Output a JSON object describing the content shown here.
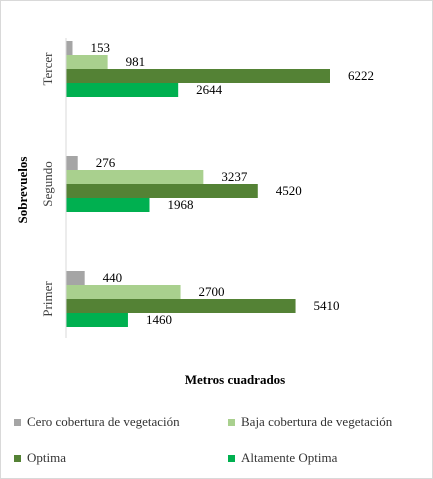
{
  "chart_data": {
    "type": "bar",
    "orientation": "horizontal",
    "categories": [
      "Tercer",
      "Segundo",
      "Primer"
    ],
    "series": [
      {
        "name": "Cero cobertura de vegetación",
        "color": "#a5a5a5",
        "values": [
          153,
          276,
          440
        ]
      },
      {
        "name": "Baja cobertura de vegetación",
        "color": "#a9d08e",
        "values": [
          981,
          3237,
          2700
        ]
      },
      {
        "name": "Optima",
        "color": "#548235",
        "values": [
          6222,
          4520,
          5410
        ]
      },
      {
        "name": "Altamente Optima",
        "color": "#00b050",
        "values": [
          2644,
          1968,
          1460
        ]
      }
    ],
    "xlabel": "Metros cuadrados",
    "ylabel": "Sobrevuelos",
    "xlim": [
      0,
      7000
    ],
    "grid": false,
    "legend_position": "bottom"
  }
}
